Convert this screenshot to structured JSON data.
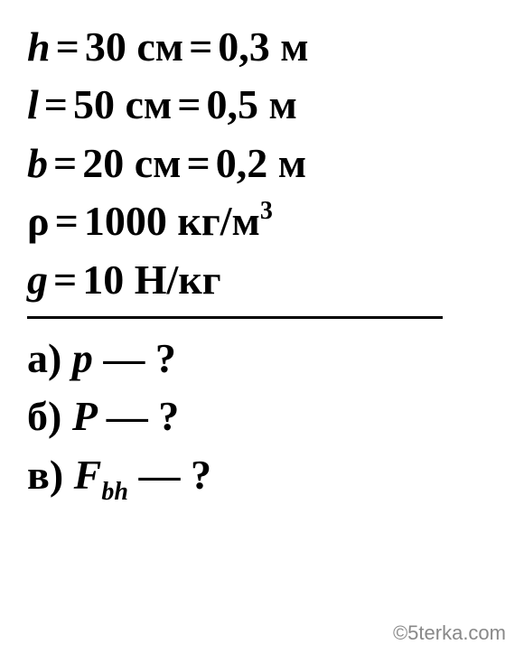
{
  "given": {
    "h": {
      "var": "h",
      "value_cm": "30",
      "unit_cm": "см",
      "value_m": "0,3",
      "unit_m": "м"
    },
    "l": {
      "var": "l",
      "value_cm": "50",
      "unit_cm": "см",
      "value_m": "0,5",
      "unit_m": "м"
    },
    "b": {
      "var": "b",
      "value_cm": "20",
      "unit_cm": "см",
      "value_m": "0,2",
      "unit_m": "м"
    },
    "rho": {
      "var": "ρ",
      "value": "1000",
      "unit": "кг/м",
      "unit_sup": "3"
    },
    "g": {
      "var": "g",
      "value": "10",
      "unit": "Н/кг"
    }
  },
  "find": {
    "a": {
      "label": "а)",
      "var": "p",
      "dash": "—",
      "q": "?"
    },
    "b": {
      "label": "б)",
      "var": "P",
      "dash": "—",
      "q": "?"
    },
    "c": {
      "label": "в)",
      "var": "F",
      "sub": "bh",
      "dash": "—",
      "q": "?"
    }
  },
  "eq": "=",
  "watermark": "©5terka.com",
  "style": {
    "text_color": "#000000",
    "bg_color": "#ffffff",
    "font_size_main": 46,
    "font_size_supsub": 28,
    "font_weight": "bold",
    "divider_color": "#000000",
    "divider_width": 3,
    "watermark_color": "#888888",
    "watermark_size": 22
  }
}
